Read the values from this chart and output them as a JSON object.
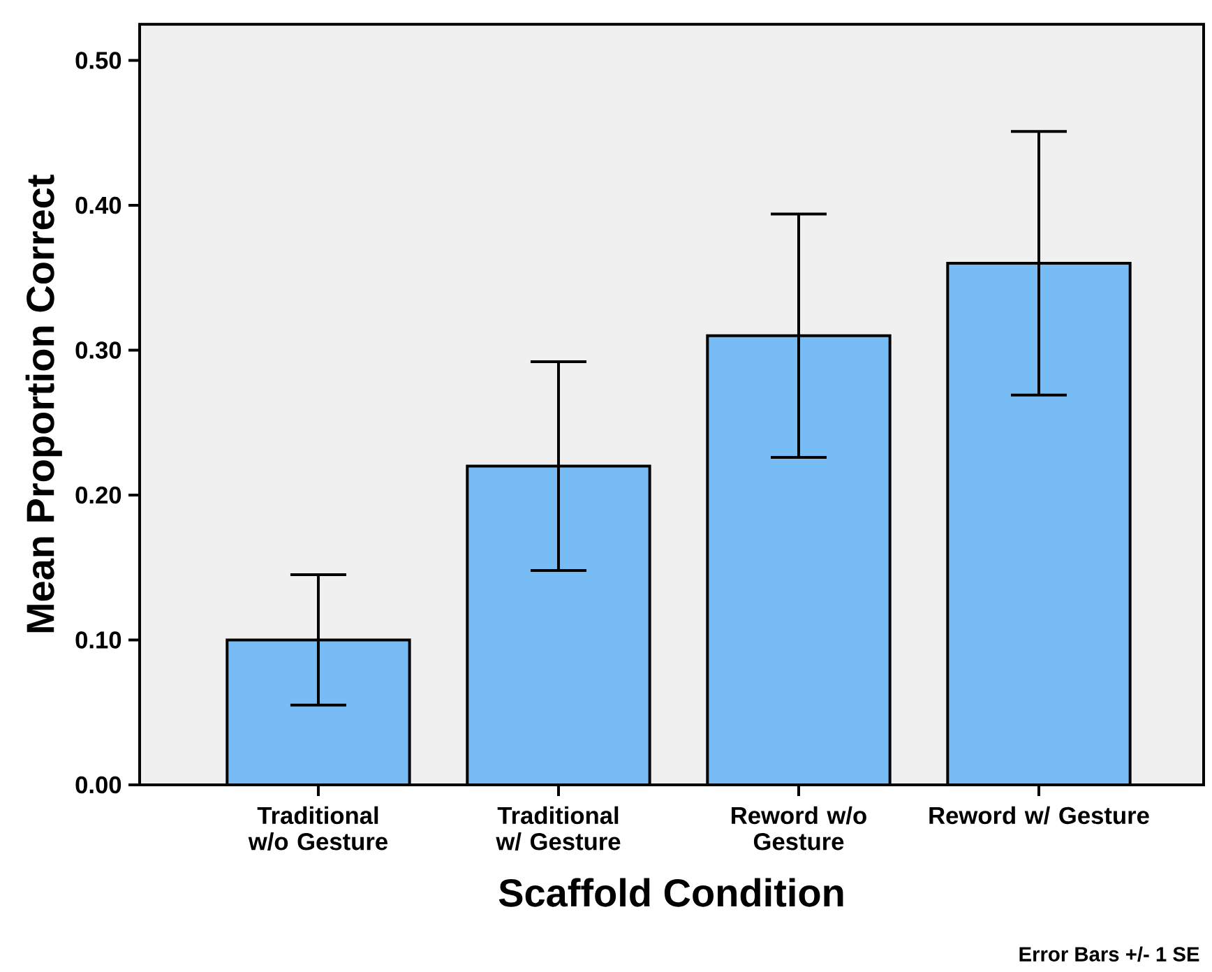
{
  "chart_data": {
    "type": "bar",
    "xlabel": "Scaffold Condition",
    "ylabel": "Mean Proportion Correct",
    "categories": [
      "Traditional w/o Gesture",
      "Traditional w/ Gesture",
      "Reword w/o Gesture",
      "Reword w/ Gesture"
    ],
    "values": [
      0.1,
      0.22,
      0.31,
      0.36
    ],
    "errors": [
      0.045,
      0.072,
      0.084,
      0.091
    ],
    "color": "#78bcf5",
    "ylim": [
      0,
      0.525
    ],
    "yticks": [
      {
        "value": 0,
        "label": "0.00"
      },
      {
        "value": 0.1,
        "label": "0.10"
      },
      {
        "value": 0.2,
        "label": "0.20"
      },
      {
        "value": 0.3,
        "label": "0.30"
      },
      {
        "value": 0.4,
        "label": "0.40"
      },
      {
        "value": 0.5,
        "label": "0.50"
      }
    ],
    "grid": false,
    "annotations": [
      "Error Bars +/- 1 SE"
    ]
  }
}
